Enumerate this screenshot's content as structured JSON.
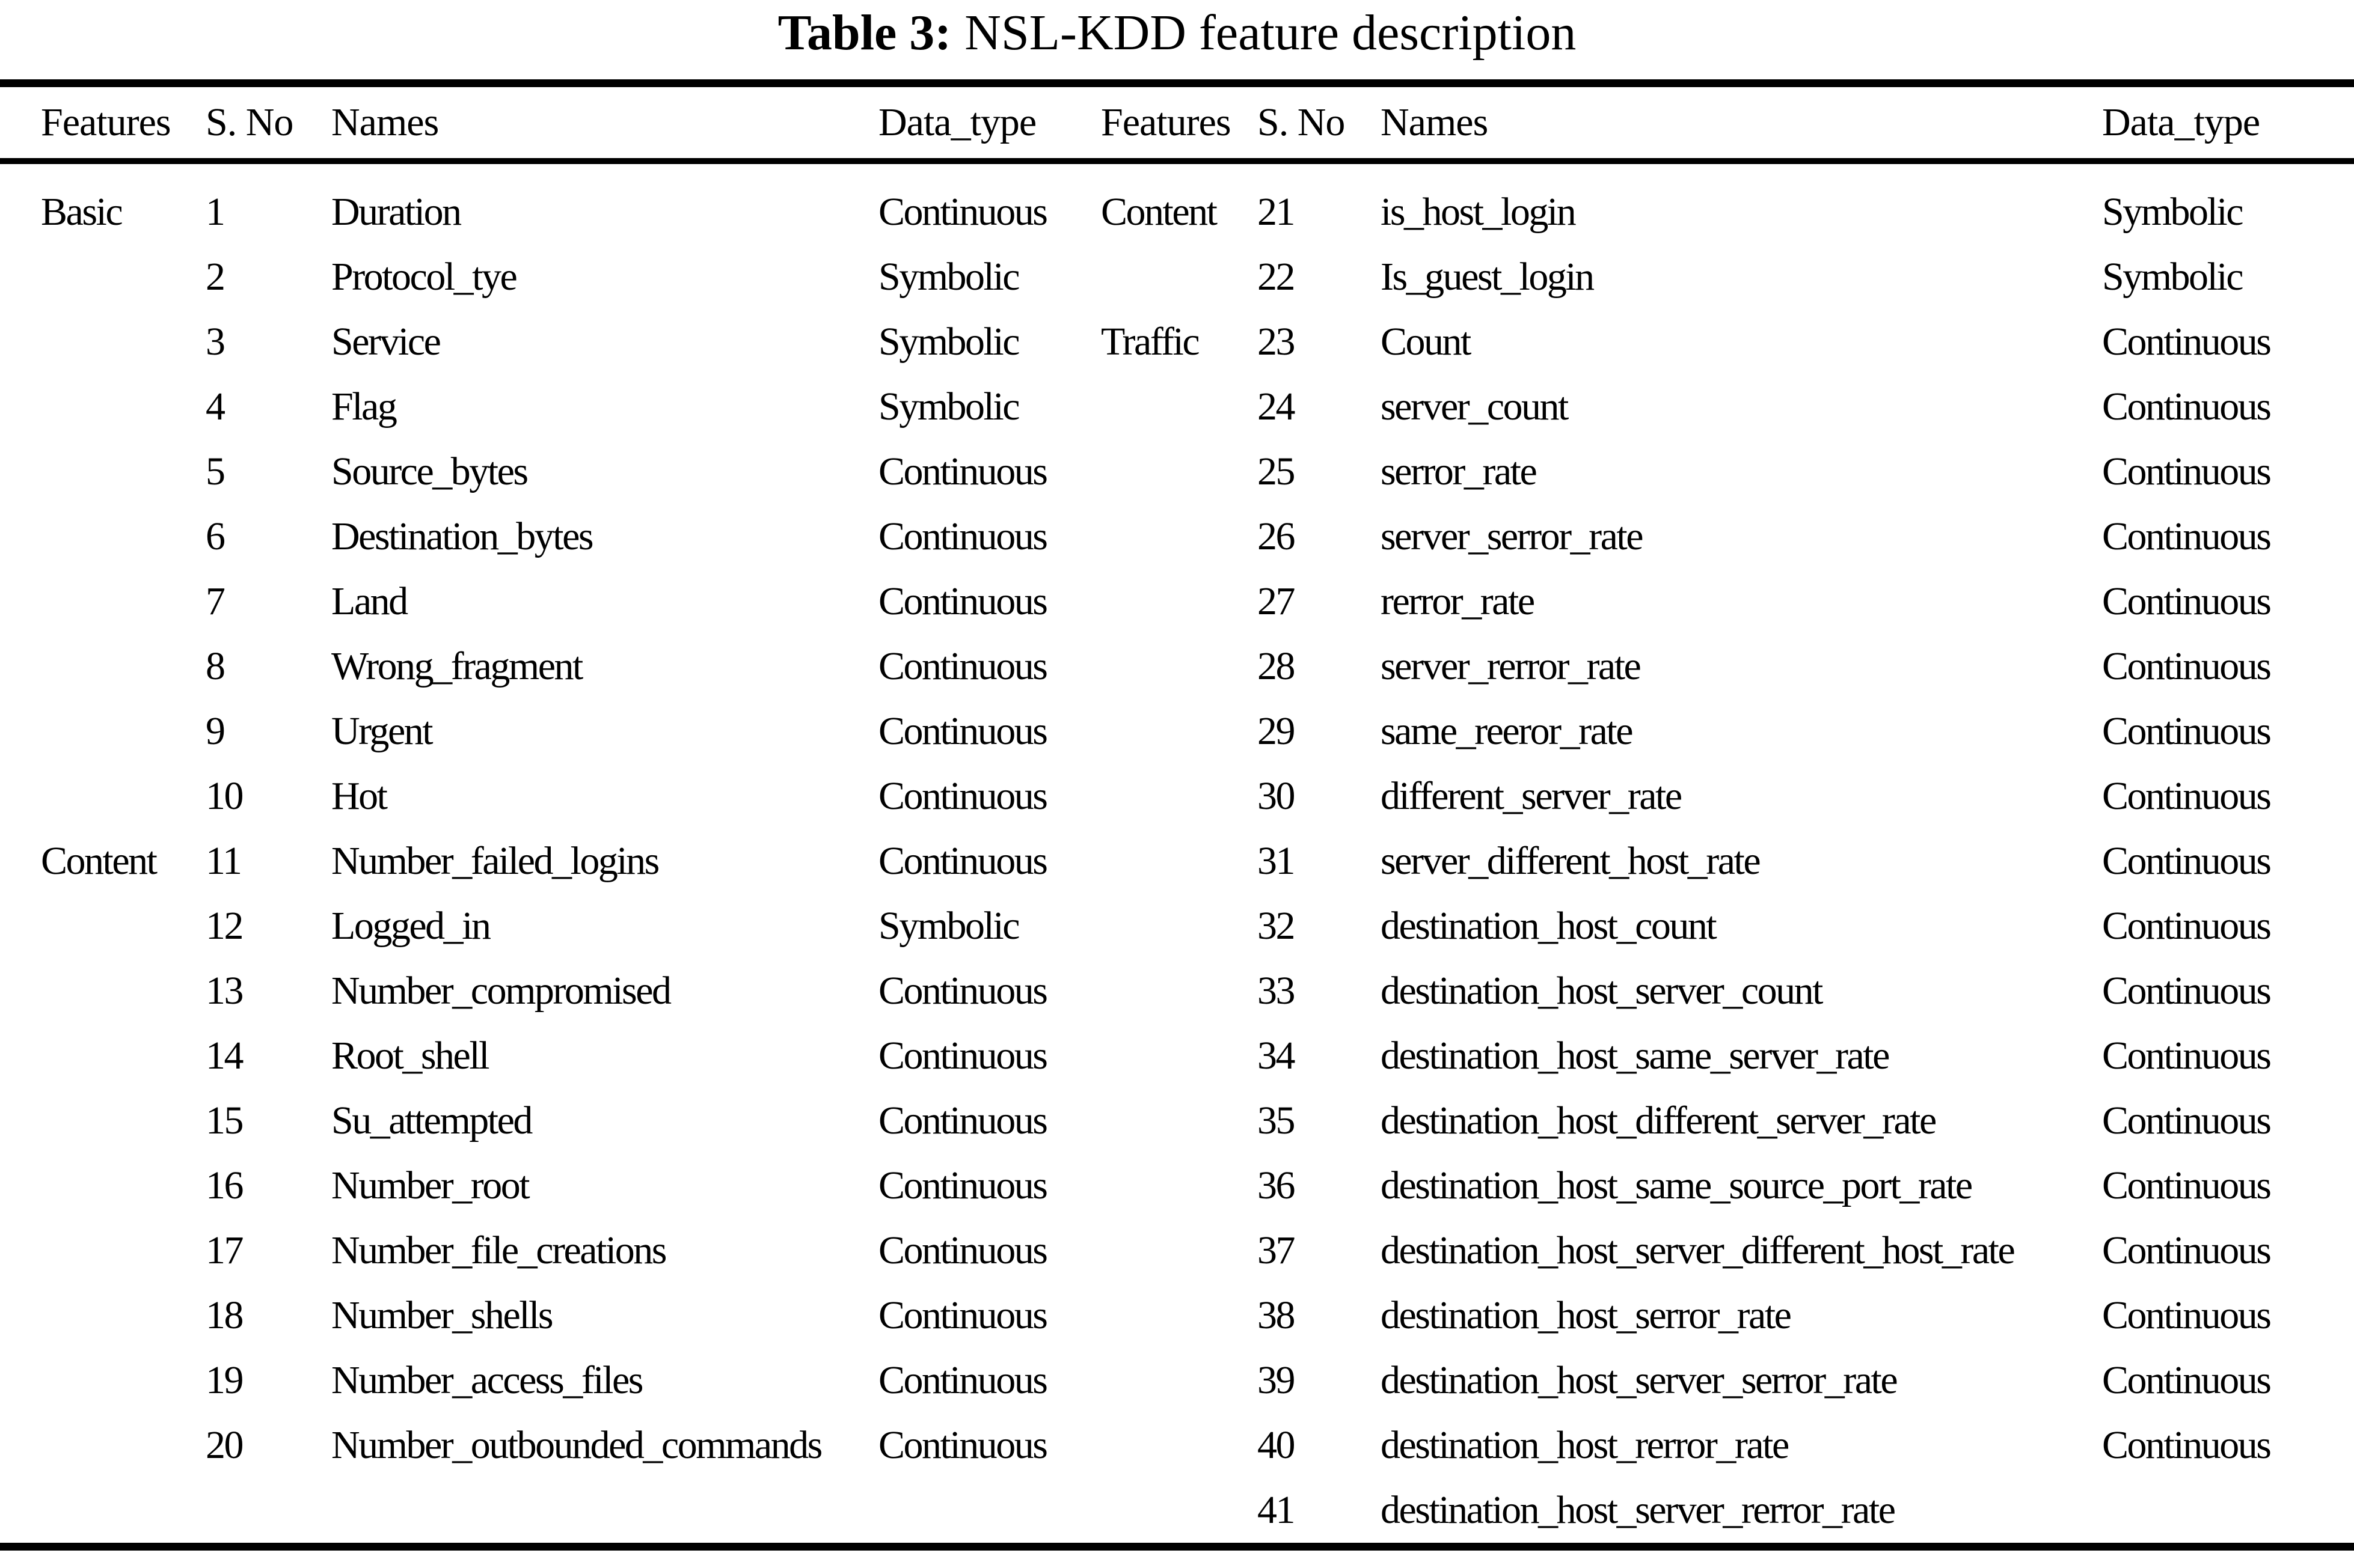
{
  "title": {
    "label": "Table 3:",
    "text": "NSL-KDD feature description"
  },
  "columns": [
    "Features",
    "S. No",
    "Names",
    "Data_type",
    "Features",
    "S. No",
    "Names",
    "Data_type"
  ],
  "left_rows": [
    {
      "group": "Basic",
      "sno": "1",
      "name": "Duration",
      "type": "Continuous"
    },
    {
      "group": "",
      "sno": "2",
      "name": "Protocol_tye",
      "type": "Symbolic"
    },
    {
      "group": "",
      "sno": "3",
      "name": "Service",
      "type": "Symbolic"
    },
    {
      "group": "",
      "sno": "4",
      "name": "Flag",
      "type": "Symbolic"
    },
    {
      "group": "",
      "sno": "5",
      "name": "Source_bytes",
      "type": "Continuous"
    },
    {
      "group": "",
      "sno": "6",
      "name": "Destination_bytes",
      "type": "Continuous"
    },
    {
      "group": "",
      "sno": "7",
      "name": "Land",
      "type": "Continuous"
    },
    {
      "group": "",
      "sno": "8",
      "name": "Wrong_fragment",
      "type": "Continuous"
    },
    {
      "group": "",
      "sno": "9",
      "name": "Urgent",
      "type": "Continuous"
    },
    {
      "group": "",
      "sno": "10",
      "name": "Hot",
      "type": "Continuous"
    },
    {
      "group": "Content",
      "sno": "11",
      "name": "Number_failed_logins",
      "type": "Continuous"
    },
    {
      "group": "",
      "sno": "12",
      "name": "Logged_in",
      "type": "Symbolic"
    },
    {
      "group": "",
      "sno": "13",
      "name": "Number_compromised",
      "type": "Continuous"
    },
    {
      "group": "",
      "sno": "14",
      "name": "Root_shell",
      "type": "Continuous"
    },
    {
      "group": "",
      "sno": "15",
      "name": "Su_attempted",
      "type": "Continuous"
    },
    {
      "group": "",
      "sno": "16",
      "name": "Number_root",
      "type": "Continuous"
    },
    {
      "group": "",
      "sno": "17",
      "name": "Number_file_creations",
      "type": "Continuous"
    },
    {
      "group": "",
      "sno": "18",
      "name": "Number_shells",
      "type": "Continuous"
    },
    {
      "group": "",
      "sno": "19",
      "name": "Number_access_files",
      "type": "Continuous"
    },
    {
      "group": "",
      "sno": "20",
      "name": "Number_outbounded_commands",
      "type": "Continuous"
    }
  ],
  "right_rows": [
    {
      "group": "Content",
      "sno": "21",
      "name": "is_host_login",
      "type": "Symbolic"
    },
    {
      "group": "",
      "sno": "22",
      "name": "Is_guest_login",
      "type": "Symbolic"
    },
    {
      "group": "Traffic",
      "sno": "23",
      "name": "Count",
      "type": "Continuous"
    },
    {
      "group": "",
      "sno": "24",
      "name": "server_count",
      "type": "Continuous"
    },
    {
      "group": "",
      "sno": "25",
      "name": "serror_rate",
      "type": "Continuous"
    },
    {
      "group": "",
      "sno": "26",
      "name": "server_serror_rate",
      "type": "Continuous"
    },
    {
      "group": "",
      "sno": "27",
      "name": "rerror_rate",
      "type": "Continuous"
    },
    {
      "group": "",
      "sno": "28",
      "name": "server_rerror_rate",
      "type": "Continuous"
    },
    {
      "group": "",
      "sno": "29",
      "name": "same_reeror_rate",
      "type": "Continuous"
    },
    {
      "group": "",
      "sno": "30",
      "name": "different_server_rate",
      "type": "Continuous"
    },
    {
      "group": "",
      "sno": "31",
      "name": "server_different_host_rate",
      "type": "Continuous"
    },
    {
      "group": "",
      "sno": "32",
      "name": "destination_host_count",
      "type": "Continuous"
    },
    {
      "group": "",
      "sno": "33",
      "name": "destination_host_server_count",
      "type": "Continuous"
    },
    {
      "group": "",
      "sno": "34",
      "name": "destination_host_same_server_rate",
      "type": "Continuous"
    },
    {
      "group": "",
      "sno": "35",
      "name": "destination_host_different_server_rate",
      "type": "Continuous"
    },
    {
      "group": "",
      "sno": "36",
      "name": "destination_host_same_source_port_rate",
      "type": "Continuous"
    },
    {
      "group": "",
      "sno": "37",
      "name": "destination_host_server_different_host_rate",
      "type": "Continuous"
    },
    {
      "group": "",
      "sno": "38",
      "name": "destination_host_serror_rate",
      "type": "Continuous"
    },
    {
      "group": "",
      "sno": "39",
      "name": "destination_host_server_serror_rate",
      "type": "Continuous"
    },
    {
      "group": "",
      "sno": "40",
      "name": "destination_host_rerror_rate",
      "type": "Continuous"
    },
    {
      "group": "",
      "sno": "41",
      "name": "destination_host_server_rerror_rate",
      "type": ""
    }
  ],
  "colors": {
    "text": "#000000",
    "background": "#ffffff",
    "rule": "#000000"
  }
}
